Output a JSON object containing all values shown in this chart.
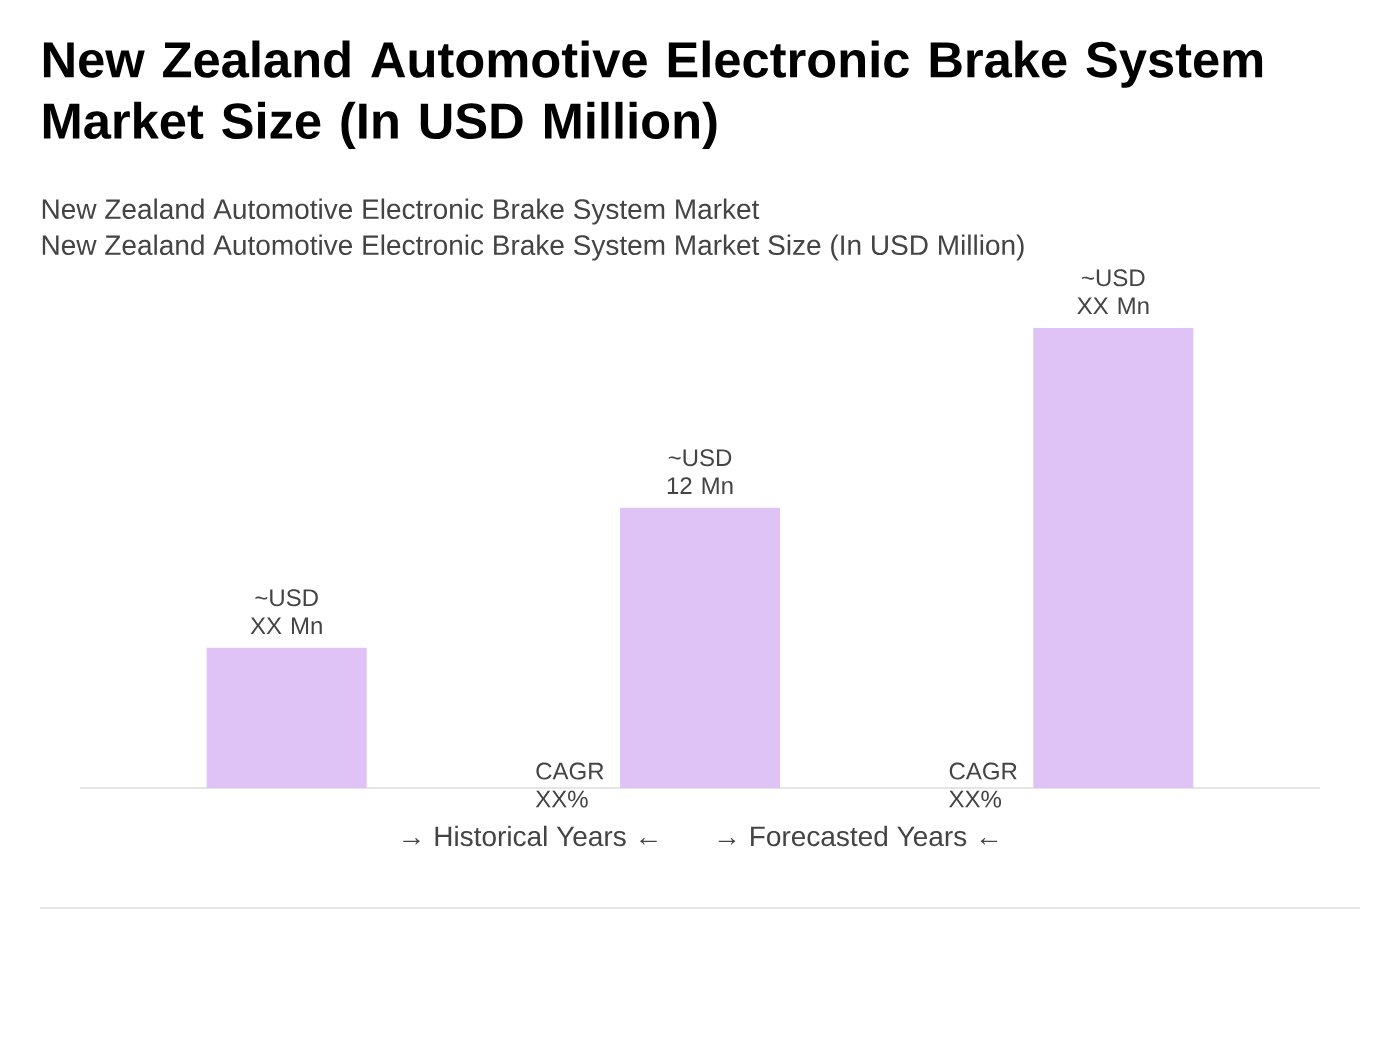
{
  "chart_data": {
    "type": "bar",
    "title": "New Zealand Automotive Electronic Brake System Market Size (In USD Million)",
    "subtitle": "New Zealand Automotive Electronic Brake System Market",
    "categories": [
      null,
      null,
      null
    ],
    "values": [
      6,
      12,
      19.7
    ],
    "ylim": [
      0,
      19.7
    ],
    "color": "#dfc3f7",
    "value_labels": [
      "~USD XX Mn",
      "~USD 12 Mn",
      "~USD XX Mn"
    ],
    "annotations": [
      "New Zealand Automotive Electronic Brake System Market Size (In USD Million)",
      "CAGR XX%",
      "CAGR XX%",
      "→ Historical Years ←",
      "→ Forecasted Years ←"
    ]
  }
}
